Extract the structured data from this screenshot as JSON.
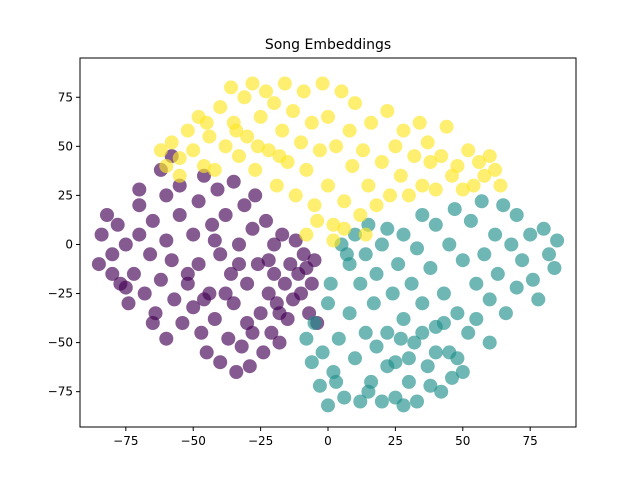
{
  "chart_data": {
    "type": "scatter",
    "title": "Song Embeddings",
    "xlabel": "",
    "ylabel": "",
    "xlim": [
      -92,
      92
    ],
    "ylim": [
      -93,
      95
    ],
    "xticks": [
      -75,
      -50,
      -25,
      0,
      25,
      50,
      75
    ],
    "yticks": [
      -75,
      -50,
      -25,
      0,
      25,
      50,
      75
    ],
    "xtick_labels": [
      "−75",
      "−50",
      "−25",
      "0",
      "25",
      "50",
      "75"
    ],
    "ytick_labels": [
      "−75",
      "−50",
      "−25",
      "0",
      "25",
      "50",
      "75"
    ],
    "grid": false,
    "legend": "none",
    "series": [
      {
        "color": "#440154",
        "points": [
          [
            -85,
            -10
          ],
          [
            -84,
            5
          ],
          [
            -82,
            15
          ],
          [
            -80,
            -5
          ],
          [
            -78,
            10
          ],
          [
            -77,
            -20
          ],
          [
            -75,
            0
          ],
          [
            -74,
            -30
          ],
          [
            -72,
            -15
          ],
          [
            -70,
            5
          ],
          [
            -70,
            20
          ],
          [
            -68,
            -25
          ],
          [
            -66,
            -5
          ],
          [
            -65,
            12
          ],
          [
            -64,
            -35
          ],
          [
            -62,
            -18
          ],
          [
            -60,
            25
          ],
          [
            -60,
            2
          ],
          [
            -58,
            -8
          ],
          [
            -57,
            -28
          ],
          [
            -55,
            30
          ],
          [
            -55,
            15
          ],
          [
            -54,
            -40
          ],
          [
            -52,
            -20
          ],
          [
            -50,
            5
          ],
          [
            -50,
            -32
          ],
          [
            -48,
            22
          ],
          [
            -48,
            -10
          ],
          [
            -47,
            -45
          ],
          [
            -46,
            35
          ],
          [
            -45,
            -55
          ],
          [
            -44,
            -25
          ],
          [
            -43,
            10
          ],
          [
            -42,
            -38
          ],
          [
            -41,
            28
          ],
          [
            -40,
            -5
          ],
          [
            -40,
            -60
          ],
          [
            -38,
            15
          ],
          [
            -37,
            -48
          ],
          [
            -36,
            -15
          ],
          [
            -35,
            32
          ],
          [
            -35,
            -30
          ],
          [
            -34,
            -65
          ],
          [
            -33,
            0
          ],
          [
            -32,
            -52
          ],
          [
            -31,
            20
          ],
          [
            -30,
            -20
          ],
          [
            -30,
            -40
          ],
          [
            -29,
            -62
          ],
          [
            -28,
            8
          ],
          [
            -27,
            25
          ],
          [
            -26,
            -10
          ],
          [
            -25,
            -35
          ],
          [
            -24,
            -55
          ],
          [
            -23,
            12
          ],
          [
            -22,
            -25
          ],
          [
            -21,
            -45
          ],
          [
            -20,
            0
          ],
          [
            -20,
            -15
          ],
          [
            -19,
            -30
          ],
          [
            -18,
            -50
          ],
          [
            -17,
            5
          ],
          [
            -16,
            -20
          ],
          [
            -15,
            -38
          ],
          [
            -14,
            -10
          ],
          [
            -13,
            -28
          ],
          [
            -12,
            2
          ],
          [
            -11,
            -15
          ],
          [
            -10,
            -25
          ],
          [
            -9,
            -5
          ],
          [
            -8,
            -12
          ],
          [
            -7,
            -35
          ],
          [
            -6,
            -20
          ],
          [
            -5,
            -8
          ],
          [
            -4,
            -40
          ],
          [
            -65,
            -40
          ],
          [
            -60,
            -48
          ],
          [
            -70,
            28
          ],
          [
            -62,
            38
          ],
          [
            -58,
            45
          ],
          [
            -52,
            -15
          ],
          [
            -46,
            -28
          ],
          [
            -38,
            -25
          ],
          [
            -42,
            2
          ],
          [
            -33,
            -10
          ],
          [
            -28,
            -45
          ],
          [
            -22,
            -8
          ],
          [
            -18,
            -35
          ],
          [
            -75,
            -22
          ],
          [
            -80,
            -15
          ]
        ]
      },
      {
        "color": "#21918c",
        "points": [
          [
            5,
            0
          ],
          [
            8,
            -10
          ],
          [
            10,
            5
          ],
          [
            12,
            -20
          ],
          [
            14,
            -5
          ],
          [
            15,
            10
          ],
          [
            17,
            -30
          ],
          [
            18,
            -15
          ],
          [
            20,
            0
          ],
          [
            22,
            -45
          ],
          [
            22,
            8
          ],
          [
            24,
            -25
          ],
          [
            25,
            -60
          ],
          [
            26,
            -10
          ],
          [
            28,
            -38
          ],
          [
            28,
            5
          ],
          [
            30,
            -70
          ],
          [
            31,
            -20
          ],
          [
            32,
            -50
          ],
          [
            33,
            -2
          ],
          [
            35,
            15
          ],
          [
            35,
            -30
          ],
          [
            37,
            -62
          ],
          [
            38,
            -12
          ],
          [
            40,
            -42
          ],
          [
            40,
            10
          ],
          [
            42,
            -75
          ],
          [
            43,
            -25
          ],
          [
            45,
            -55
          ],
          [
            45,
            0
          ],
          [
            47,
            18
          ],
          [
            48,
            -35
          ],
          [
            50,
            -8
          ],
          [
            50,
            -65
          ],
          [
            52,
            -45
          ],
          [
            53,
            12
          ],
          [
            55,
            -20
          ],
          [
            55,
            -38
          ],
          [
            57,
            22
          ],
          [
            58,
            -5
          ],
          [
            60,
            -28
          ],
          [
            60,
            -50
          ],
          [
            62,
            5
          ],
          [
            63,
            -15
          ],
          [
            65,
            20
          ],
          [
            66,
            -35
          ],
          [
            68,
            0
          ],
          [
            70,
            15
          ],
          [
            70,
            -22
          ],
          [
            72,
            -8
          ],
          [
            75,
            5
          ],
          [
            76,
            -18
          ],
          [
            78,
            -28
          ],
          [
            80,
            8
          ],
          [
            82,
            -5
          ],
          [
            84,
            -12
          ],
          [
            85,
            2
          ],
          [
            -5,
            -40
          ],
          [
            -2,
            -55
          ],
          [
            0,
            -30
          ],
          [
            2,
            -65
          ],
          [
            4,
            -48
          ],
          [
            6,
            -78
          ],
          [
            8,
            -35
          ],
          [
            10,
            -58
          ],
          [
            12,
            -80
          ],
          [
            14,
            -45
          ],
          [
            16,
            -70
          ],
          [
            18,
            -52
          ],
          [
            20,
            -80
          ],
          [
            22,
            -62
          ],
          [
            25,
            -78
          ],
          [
            27,
            -48
          ],
          [
            30,
            -58
          ],
          [
            33,
            -80
          ],
          [
            35,
            -45
          ],
          [
            38,
            -72
          ],
          [
            40,
            -55
          ],
          [
            43,
            -40
          ],
          [
            46,
            -68
          ],
          [
            -8,
            -48
          ],
          [
            -6,
            -60
          ],
          [
            -3,
            -72
          ],
          [
            0,
            -82
          ],
          [
            3,
            -70
          ],
          [
            1,
            -20
          ],
          [
            7,
            -5
          ],
          [
            15,
            -75
          ],
          [
            28,
            -82
          ],
          [
            48,
            -58
          ]
        ]
      },
      {
        "color": "#fde725",
        "points": [
          [
            -62,
            48
          ],
          [
            -60,
            40
          ],
          [
            -58,
            52
          ],
          [
            -55,
            44
          ],
          [
            -52,
            58
          ],
          [
            -50,
            48
          ],
          [
            -48,
            65
          ],
          [
            -46,
            40
          ],
          [
            -44,
            55
          ],
          [
            -42,
            38
          ],
          [
            -40,
            70
          ],
          [
            -38,
            50
          ],
          [
            -36,
            80
          ],
          [
            -35,
            62
          ],
          [
            -33,
            45
          ],
          [
            -31,
            75
          ],
          [
            -30,
            55
          ],
          [
            -28,
            82
          ],
          [
            -27,
            38
          ],
          [
            -25,
            65
          ],
          [
            -23,
            78
          ],
          [
            -22,
            48
          ],
          [
            -20,
            72
          ],
          [
            -19,
            30
          ],
          [
            -17,
            58
          ],
          [
            -16,
            82
          ],
          [
            -15,
            42
          ],
          [
            -13,
            68
          ],
          [
            -12,
            25
          ],
          [
            -10,
            52
          ],
          [
            -9,
            78
          ],
          [
            -8,
            38
          ],
          [
            -6,
            62
          ],
          [
            -5,
            20
          ],
          [
            -3,
            48
          ],
          [
            -2,
            82
          ],
          [
            0,
            30
          ],
          [
            0,
            65
          ],
          [
            2,
            10
          ],
          [
            3,
            50
          ],
          [
            5,
            78
          ],
          [
            6,
            22
          ],
          [
            8,
            58
          ],
          [
            9,
            40
          ],
          [
            10,
            72
          ],
          [
            12,
            15
          ],
          [
            13,
            48
          ],
          [
            15,
            30
          ],
          [
            16,
            62
          ],
          [
            18,
            20
          ],
          [
            20,
            42
          ],
          [
            22,
            68
          ],
          [
            23,
            25
          ],
          [
            25,
            50
          ],
          [
            27,
            35
          ],
          [
            28,
            58
          ],
          [
            30,
            25
          ],
          [
            32,
            45
          ],
          [
            34,
            62
          ],
          [
            35,
            30
          ],
          [
            37,
            52
          ],
          [
            38,
            42
          ],
          [
            40,
            28
          ],
          [
            42,
            45
          ],
          [
            44,
            60
          ],
          [
            46,
            35
          ],
          [
            48,
            40
          ],
          [
            50,
            28
          ],
          [
            52,
            48
          ],
          [
            54,
            30
          ],
          [
            56,
            42
          ],
          [
            58,
            35
          ],
          [
            60,
            45
          ],
          [
            62,
            38
          ],
          [
            64,
            30
          ],
          [
            -4,
            12
          ],
          [
            2,
            2
          ],
          [
            6,
            8
          ],
          [
            14,
            5
          ],
          [
            -8,
            5
          ],
          [
            -18,
            45
          ],
          [
            -26,
            50
          ],
          [
            -34,
            58
          ],
          [
            -45,
            62
          ],
          [
            -55,
            35
          ]
        ]
      }
    ]
  }
}
